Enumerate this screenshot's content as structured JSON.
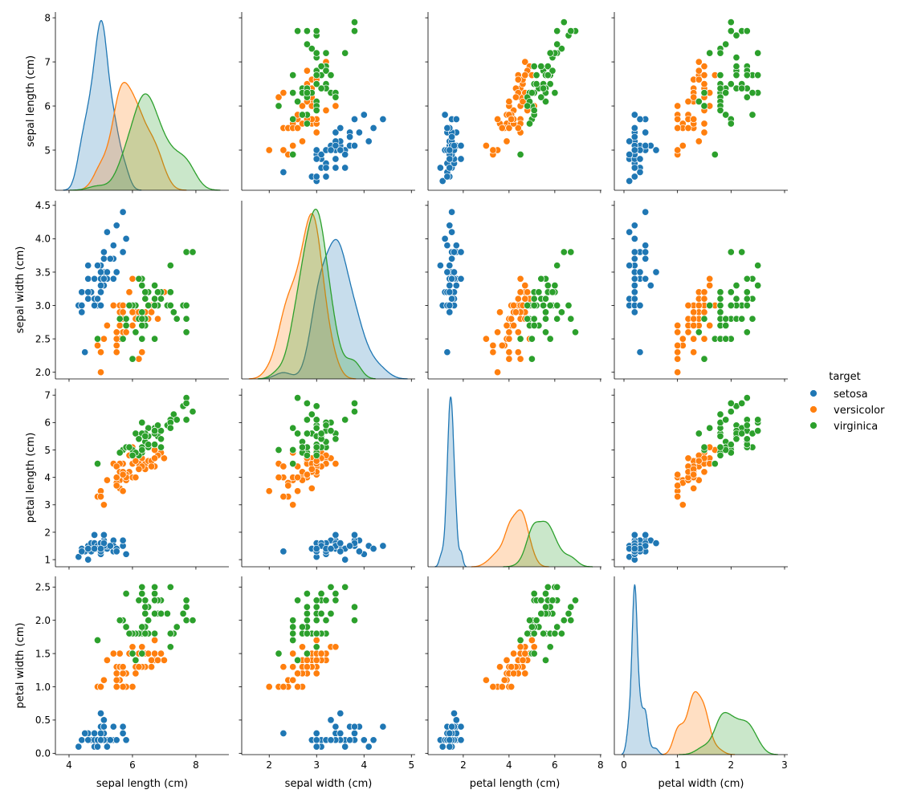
{
  "chart_data": {
    "type": "pairplot",
    "variables": [
      "sepal length (cm)",
      "sepal width (cm)",
      "petal length (cm)",
      "petal width (cm)"
    ],
    "diagonal": "kde",
    "offdiagonal": "scatter",
    "hue": "target",
    "legend": {
      "title": "target",
      "placement": "right",
      "entries": [
        "setosa",
        "versicolor",
        "virginica"
      ]
    },
    "colors": {
      "setosa": "#1f77b4",
      "versicolor": "#ff7f0e",
      "virginica": "#2ca02c"
    },
    "axes": [
      {
        "range": [
          3.57,
          9.04
        ],
        "ticks": [
          "4",
          "6",
          "8"
        ],
        "ytick_range": [
          4.09,
          8.13
        ],
        "yticks": [
          "5",
          "6",
          "7",
          "8"
        ]
      },
      {
        "range": [
          1.42,
          5.08
        ],
        "ticks": [
          "2",
          "3",
          "4",
          "5"
        ],
        "ytick_range": [
          1.9,
          4.57
        ],
        "yticks": [
          "2.0",
          "2.5",
          "3.0",
          "3.5",
          "4.0",
          "4.5"
        ]
      },
      {
        "range": [
          0.46,
          8.04
        ],
        "ticks": [
          "2",
          "4",
          "6",
          "8"
        ],
        "ytick_range": [
          0.74,
          7.24
        ],
        "yticks": [
          "1",
          "2",
          "3",
          "4",
          "5",
          "6",
          "7"
        ]
      },
      {
        "range": [
          -0.18,
          3.06
        ],
        "ticks": [
          "0",
          "1",
          "2",
          "3"
        ],
        "ytick_range": [
          -0.02,
          2.66
        ],
        "yticks": [
          "0.0",
          "0.5",
          "1.0",
          "1.5",
          "2.0",
          "2.5"
        ]
      }
    ],
    "series": [
      {
        "name": "setosa",
        "rows": [
          [
            5.1,
            3.5,
            1.4,
            0.2
          ],
          [
            4.9,
            3.0,
            1.4,
            0.2
          ],
          [
            4.7,
            3.2,
            1.3,
            0.2
          ],
          [
            4.6,
            3.1,
            1.5,
            0.2
          ],
          [
            5.0,
            3.6,
            1.4,
            0.2
          ],
          [
            5.4,
            3.9,
            1.7,
            0.4
          ],
          [
            4.6,
            3.4,
            1.4,
            0.3
          ],
          [
            5.0,
            3.4,
            1.5,
            0.2
          ],
          [
            4.4,
            2.9,
            1.4,
            0.2
          ],
          [
            4.9,
            3.1,
            1.5,
            0.1
          ],
          [
            5.4,
            3.7,
            1.5,
            0.2
          ],
          [
            4.8,
            3.4,
            1.6,
            0.2
          ],
          [
            4.8,
            3.0,
            1.4,
            0.1
          ],
          [
            4.3,
            3.0,
            1.1,
            0.1
          ],
          [
            5.8,
            4.0,
            1.2,
            0.2
          ],
          [
            5.7,
            4.4,
            1.5,
            0.4
          ],
          [
            5.4,
            3.9,
            1.3,
            0.4
          ],
          [
            5.1,
            3.5,
            1.4,
            0.3
          ],
          [
            5.7,
            3.8,
            1.7,
            0.3
          ],
          [
            5.1,
            3.8,
            1.5,
            0.3
          ],
          [
            5.4,
            3.4,
            1.7,
            0.2
          ],
          [
            5.1,
            3.7,
            1.5,
            0.4
          ],
          [
            4.6,
            3.6,
            1.0,
            0.2
          ],
          [
            5.1,
            3.3,
            1.7,
            0.5
          ],
          [
            4.8,
            3.4,
            1.9,
            0.2
          ],
          [
            5.0,
            3.0,
            1.6,
            0.2
          ],
          [
            5.0,
            3.4,
            1.6,
            0.4
          ],
          [
            5.2,
            3.5,
            1.5,
            0.2
          ],
          [
            5.2,
            3.4,
            1.4,
            0.2
          ],
          [
            4.7,
            3.2,
            1.6,
            0.2
          ],
          [
            4.8,
            3.1,
            1.6,
            0.2
          ],
          [
            5.4,
            3.4,
            1.5,
            0.4
          ],
          [
            5.2,
            4.1,
            1.5,
            0.1
          ],
          [
            5.5,
            4.2,
            1.4,
            0.2
          ],
          [
            4.9,
            3.1,
            1.5,
            0.2
          ],
          [
            5.0,
            3.2,
            1.2,
            0.2
          ],
          [
            5.5,
            3.5,
            1.3,
            0.2
          ],
          [
            4.9,
            3.6,
            1.4,
            0.1
          ],
          [
            4.4,
            3.0,
            1.3,
            0.2
          ],
          [
            5.1,
            3.4,
            1.5,
            0.2
          ],
          [
            5.0,
            3.5,
            1.3,
            0.3
          ],
          [
            4.5,
            2.3,
            1.3,
            0.3
          ],
          [
            4.4,
            3.2,
            1.3,
            0.2
          ],
          [
            5.0,
            3.5,
            1.6,
            0.6
          ],
          [
            5.1,
            3.8,
            1.9,
            0.4
          ],
          [
            4.8,
            3.0,
            1.4,
            0.3
          ],
          [
            5.1,
            3.8,
            1.6,
            0.2
          ],
          [
            4.6,
            3.2,
            1.4,
            0.2
          ],
          [
            5.3,
            3.7,
            1.5,
            0.2
          ],
          [
            5.0,
            3.3,
            1.4,
            0.2
          ]
        ]
      },
      {
        "name": "versicolor",
        "rows": [
          [
            7.0,
            3.2,
            4.7,
            1.4
          ],
          [
            6.4,
            3.2,
            4.5,
            1.5
          ],
          [
            6.9,
            3.1,
            4.9,
            1.5
          ],
          [
            5.5,
            2.3,
            4.0,
            1.3
          ],
          [
            6.5,
            2.8,
            4.6,
            1.5
          ],
          [
            5.7,
            2.8,
            4.5,
            1.3
          ],
          [
            6.3,
            3.3,
            4.7,
            1.6
          ],
          [
            4.9,
            2.4,
            3.3,
            1.0
          ],
          [
            6.6,
            2.9,
            4.6,
            1.3
          ],
          [
            5.2,
            2.7,
            3.9,
            1.4
          ],
          [
            5.0,
            2.0,
            3.5,
            1.0
          ],
          [
            5.9,
            3.0,
            4.2,
            1.5
          ],
          [
            6.0,
            2.2,
            4.0,
            1.0
          ],
          [
            6.1,
            2.9,
            4.7,
            1.4
          ],
          [
            5.6,
            2.9,
            3.6,
            1.3
          ],
          [
            6.7,
            3.1,
            4.4,
            1.4
          ],
          [
            5.6,
            3.0,
            4.5,
            1.5
          ],
          [
            5.8,
            2.7,
            4.1,
            1.0
          ],
          [
            6.2,
            2.2,
            4.5,
            1.5
          ],
          [
            5.6,
            2.5,
            3.9,
            1.1
          ],
          [
            5.9,
            3.2,
            4.8,
            1.8
          ],
          [
            6.1,
            2.8,
            4.0,
            1.3
          ],
          [
            6.3,
            2.5,
            4.9,
            1.5
          ],
          [
            6.1,
            2.8,
            4.7,
            1.2
          ],
          [
            6.4,
            2.9,
            4.3,
            1.3
          ],
          [
            6.6,
            3.0,
            4.4,
            1.4
          ],
          [
            6.8,
            2.8,
            4.8,
            1.4
          ],
          [
            6.7,
            3.0,
            5.0,
            1.7
          ],
          [
            6.0,
            2.9,
            4.5,
            1.5
          ],
          [
            5.7,
            2.6,
            3.5,
            1.0
          ],
          [
            5.5,
            2.4,
            3.8,
            1.1
          ],
          [
            5.5,
            2.4,
            3.7,
            1.0
          ],
          [
            5.8,
            2.7,
            3.9,
            1.2
          ],
          [
            6.0,
            2.7,
            5.1,
            1.6
          ],
          [
            5.4,
            3.0,
            4.5,
            1.5
          ],
          [
            6.0,
            3.4,
            4.5,
            1.6
          ],
          [
            6.7,
            3.1,
            4.7,
            1.5
          ],
          [
            6.3,
            2.3,
            4.4,
            1.3
          ],
          [
            5.6,
            3.0,
            4.1,
            1.3
          ],
          [
            5.5,
            2.5,
            4.0,
            1.3
          ],
          [
            5.5,
            2.6,
            4.4,
            1.2
          ],
          [
            6.1,
            3.0,
            4.6,
            1.4
          ],
          [
            5.8,
            2.6,
            4.0,
            1.2
          ],
          [
            5.0,
            2.3,
            3.3,
            1.0
          ],
          [
            5.6,
            2.7,
            4.2,
            1.3
          ],
          [
            5.7,
            3.0,
            4.2,
            1.2
          ],
          [
            5.7,
            2.9,
            4.2,
            1.3
          ],
          [
            6.2,
            2.9,
            4.3,
            1.3
          ],
          [
            5.1,
            2.5,
            3.0,
            1.1
          ],
          [
            5.7,
            2.8,
            4.1,
            1.3
          ]
        ]
      },
      {
        "name": "virginica",
        "rows": [
          [
            6.3,
            3.3,
            6.0,
            2.5
          ],
          [
            5.8,
            2.7,
            5.1,
            1.9
          ],
          [
            7.1,
            3.0,
            5.9,
            2.1
          ],
          [
            6.3,
            2.9,
            5.6,
            1.8
          ],
          [
            6.5,
            3.0,
            5.8,
            2.2
          ],
          [
            7.6,
            3.0,
            6.6,
            2.1
          ],
          [
            4.9,
            2.5,
            4.5,
            1.7
          ],
          [
            7.3,
            2.9,
            6.3,
            1.8
          ],
          [
            6.7,
            2.5,
            5.8,
            1.8
          ],
          [
            7.2,
            3.6,
            6.1,
            2.5
          ],
          [
            6.5,
            3.2,
            5.1,
            2.0
          ],
          [
            6.4,
            2.7,
            5.3,
            1.9
          ],
          [
            6.8,
            3.0,
            5.5,
            2.1
          ],
          [
            5.7,
            2.5,
            5.0,
            2.0
          ],
          [
            5.8,
            2.8,
            5.1,
            2.4
          ],
          [
            6.4,
            3.2,
            5.3,
            2.3
          ],
          [
            6.5,
            3.0,
            5.5,
            1.8
          ],
          [
            7.7,
            3.8,
            6.7,
            2.2
          ],
          [
            7.7,
            2.6,
            6.9,
            2.3
          ],
          [
            6.0,
            2.2,
            5.0,
            1.5
          ],
          [
            6.9,
            3.2,
            5.7,
            2.3
          ],
          [
            5.6,
            2.8,
            4.9,
            2.0
          ],
          [
            7.7,
            2.8,
            6.7,
            2.0
          ],
          [
            6.3,
            2.7,
            4.9,
            1.8
          ],
          [
            6.7,
            3.3,
            5.7,
            2.1
          ],
          [
            7.2,
            3.2,
            6.0,
            1.8
          ],
          [
            6.2,
            2.8,
            4.8,
            1.8
          ],
          [
            6.1,
            3.0,
            4.9,
            1.8
          ],
          [
            6.4,
            2.8,
            5.6,
            2.1
          ],
          [
            7.2,
            3.0,
            5.8,
            1.6
          ],
          [
            7.4,
            2.8,
            6.1,
            1.9
          ],
          [
            7.9,
            3.8,
            6.4,
            2.0
          ],
          [
            6.4,
            2.8,
            5.6,
            2.2
          ],
          [
            6.3,
            2.8,
            5.1,
            1.5
          ],
          [
            6.1,
            2.6,
            5.6,
            1.4
          ],
          [
            7.7,
            3.0,
            6.1,
            2.3
          ],
          [
            6.3,
            3.4,
            5.6,
            2.4
          ],
          [
            6.4,
            3.1,
            5.5,
            1.8
          ],
          [
            6.0,
            3.0,
            4.8,
            1.8
          ],
          [
            6.9,
            3.1,
            5.4,
            2.1
          ],
          [
            6.7,
            3.1,
            5.6,
            2.4
          ],
          [
            6.9,
            3.1,
            5.1,
            2.3
          ],
          [
            5.8,
            2.7,
            5.1,
            1.9
          ],
          [
            6.8,
            3.2,
            5.9,
            2.3
          ],
          [
            6.7,
            3.3,
            5.7,
            2.5
          ],
          [
            6.7,
            3.0,
            5.2,
            2.3
          ],
          [
            6.3,
            2.5,
            5.0,
            1.9
          ],
          [
            6.5,
            3.0,
            5.2,
            2.0
          ],
          [
            6.2,
            3.4,
            5.4,
            2.3
          ],
          [
            5.9,
            3.0,
            5.1,
            1.8
          ]
        ]
      }
    ]
  }
}
